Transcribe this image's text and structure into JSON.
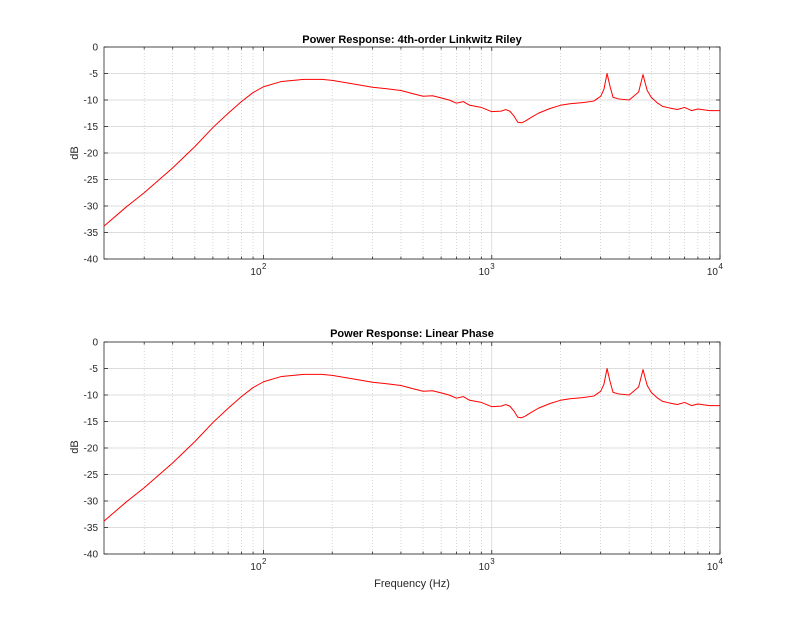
{
  "chart_data": [
    {
      "type": "line",
      "title": "Power Response: 4th-order Linkwitz Riley",
      "xlabel": "",
      "ylabel": "dB",
      "xscale": "log",
      "xlim": [
        20,
        10000
      ],
      "ylim": [
        -40,
        0
      ],
      "yticks": [
        0,
        -5,
        -10,
        -15,
        -20,
        -25,
        -30,
        -35,
        -40
      ],
      "ytick_labels": [
        "0",
        "-5",
        "-10",
        "-15",
        "-20",
        "-25",
        "-30",
        "-35",
        "-40"
      ],
      "xticks": [
        {
          "value": 100,
          "base": "10",
          "exp": "2"
        },
        {
          "value": 1000,
          "base": "10",
          "exp": "3"
        },
        {
          "value": 10000,
          "base": "10",
          "exp": "4"
        }
      ],
      "grid": true,
      "color": "#ff0000",
      "series": [
        {
          "x": [
            20,
            25,
            30,
            40,
            50,
            60,
            70,
            80,
            90,
            100,
            120,
            150,
            180,
            200,
            250,
            300,
            350,
            400,
            450,
            500,
            550,
            600,
            650,
            700,
            750,
            800,
            900,
            1000,
            1100,
            1150,
            1200,
            1250,
            1300,
            1350,
            1400,
            1500,
            1600,
            1800,
            2000,
            2200,
            2500,
            2800,
            3000,
            3100,
            3200,
            3300,
            3400,
            3600,
            4000,
            4400,
            4600,
            4700,
            4800,
            5000,
            5300,
            5600,
            6000,
            6500,
            7000,
            7500,
            8000,
            9000,
            10000
          ],
          "y": [
            -33.8,
            -30.2,
            -27.5,
            -22.8,
            -18.8,
            -15.2,
            -12.5,
            -10.3,
            -8.6,
            -7.5,
            -6.5,
            -6.1,
            -6.1,
            -6.3,
            -7,
            -7.6,
            -7.9,
            -8.2,
            -8.8,
            -9.3,
            -9.2,
            -9.6,
            -10,
            -10.6,
            -10.3,
            -11,
            -11.4,
            -12.2,
            -12.1,
            -11.8,
            -12.1,
            -13,
            -14.2,
            -14.3,
            -14,
            -13.2,
            -12.5,
            -11.6,
            -11,
            -10.7,
            -10.5,
            -10.2,
            -9.3,
            -8,
            -5,
            -7.5,
            -9.5,
            -9.8,
            -10,
            -8.5,
            -5.2,
            -6.8,
            -8.2,
            -9.5,
            -10.5,
            -11.2,
            -11.5,
            -11.8,
            -11.4,
            -12,
            -11.7,
            -12,
            -12
          ]
        }
      ]
    },
    {
      "type": "line",
      "title": "Power Response: Linear Phase",
      "xlabel": "Frequency (Hz)",
      "ylabel": "dB",
      "xscale": "log",
      "xlim": [
        20,
        10000
      ],
      "ylim": [
        -40,
        0
      ],
      "yticks": [
        0,
        -5,
        -10,
        -15,
        -20,
        -25,
        -30,
        -35,
        -40
      ],
      "ytick_labels": [
        "0",
        "-5",
        "-10",
        "-15",
        "-20",
        "-25",
        "-30",
        "-35",
        "-40"
      ],
      "xticks": [
        {
          "value": 100,
          "base": "10",
          "exp": "2"
        },
        {
          "value": 1000,
          "base": "10",
          "exp": "3"
        },
        {
          "value": 10000,
          "base": "10",
          "exp": "4"
        }
      ],
      "grid": true,
      "color": "#ff0000",
      "series": [
        {
          "x": [
            20,
            25,
            30,
            40,
            50,
            60,
            70,
            80,
            90,
            100,
            120,
            150,
            180,
            200,
            250,
            300,
            350,
            400,
            450,
            500,
            550,
            600,
            650,
            700,
            750,
            800,
            900,
            1000,
            1100,
            1150,
            1200,
            1250,
            1300,
            1350,
            1400,
            1500,
            1600,
            1800,
            2000,
            2200,
            2500,
            2800,
            3000,
            3100,
            3200,
            3300,
            3400,
            3600,
            4000,
            4400,
            4600,
            4700,
            4800,
            5000,
            5300,
            5600,
            6000,
            6500,
            7000,
            7500,
            8000,
            9000,
            10000
          ],
          "y": [
            -33.8,
            -30.2,
            -27.5,
            -22.8,
            -18.8,
            -15.2,
            -12.5,
            -10.3,
            -8.6,
            -7.5,
            -6.5,
            -6.1,
            -6.1,
            -6.3,
            -7,
            -7.6,
            -7.9,
            -8.2,
            -8.8,
            -9.3,
            -9.2,
            -9.6,
            -10,
            -10.6,
            -10.3,
            -11,
            -11.4,
            -12.2,
            -12.1,
            -11.8,
            -12.1,
            -13,
            -14.2,
            -14.3,
            -14,
            -13.2,
            -12.5,
            -11.6,
            -11,
            -10.7,
            -10.5,
            -10.2,
            -9.3,
            -8,
            -5,
            -7.5,
            -9.5,
            -9.8,
            -10,
            -8.5,
            -5.2,
            -6.8,
            -8.2,
            -9.5,
            -10.5,
            -11.2,
            -11.5,
            -11.8,
            -11.4,
            -12,
            -11.7,
            -12,
            -12
          ]
        }
      ]
    }
  ]
}
